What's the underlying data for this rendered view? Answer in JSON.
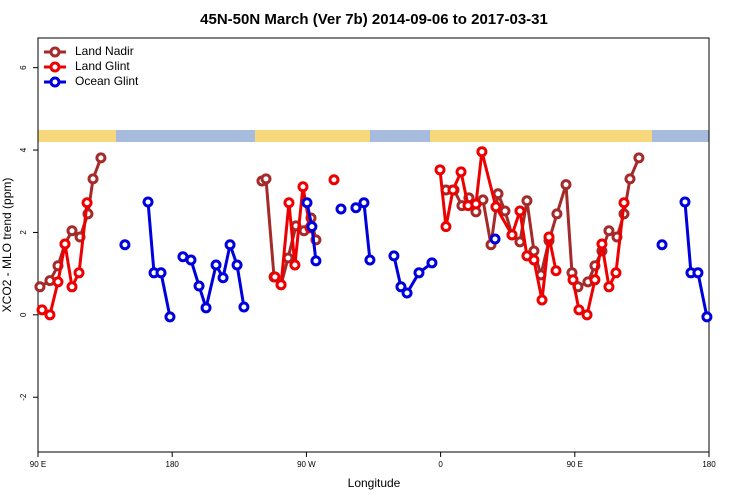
{
  "chart_data": {
    "type": "line",
    "title": "45N-50N March (Ver 7b)   2014-09-06 to 2017-03-31",
    "xlabel": "Longitude",
    "ylabel": "XCO2 - MLO trend (ppm)",
    "xlim": [
      90,
      540
    ],
    "ylim": [
      -3.33,
      6.72
    ],
    "xticks": [
      {
        "value": 90,
        "label": "90 E"
      },
      180,
      {
        "value": 270,
        "label": "90 W"
      },
      {
        "value": 360,
        "label": "0"
      },
      {
        "value": 450,
        "label": "90 E"
      },
      {
        "value": 540,
        "label": "180"
      }
    ],
    "yticks": [
      -2,
      0,
      2,
      4,
      6
    ],
    "legend": "top-left",
    "series": [
      {
        "name": "Land Nadir",
        "color": "#a52a2a",
        "x": [
          91.3,
          98.0,
          103.4,
          108.1,
          112.8,
          118.2,
          123.5,
          126.9,
          132.2,
          null,
          240.2,
          242.9,
          248.3,
          253.0,
          257.7,
          263.0,
          268.4,
          273.1,
          276.4,
          null,
          363.6,
          369.0,
          374.3,
          379.0,
          383.7,
          388.4,
          393.8,
          398.5,
          403.2,
          407.9,
          413.2,
          417.9,
          422.6,
          427.3,
          432.7,
          438.0,
          444.1,
          448.1,
          452.1,
          458.8,
          463.5,
          468.2,
          472.9,
          478.3,
          483.0,
          487.0,
          493.0
        ],
        "values": [
          0.68,
          0.83,
          1.19,
          1.72,
          2.04,
          1.89,
          2.45,
          3.3,
          3.81,
          null,
          3.25,
          3.3,
          0.92,
          0.73,
          1.38,
          2.16,
          2.04,
          2.35,
          1.82,
          null,
          3.03,
          3.03,
          2.65,
          2.84,
          2.5,
          2.79,
          1.7,
          2.94,
          2.52,
          1.94,
          1.77,
          2.77,
          1.55,
          0.97,
          1.8,
          2.45,
          3.16,
          1.02,
          0.68,
          0.8,
          1.19,
          1.55,
          2.04,
          1.89,
          2.45,
          3.3,
          3.81
        ]
      },
      {
        "name": "Land Glint",
        "color": "#ee0000",
        "x": [
          92.7,
          98.0,
          103.4,
          108.1,
          112.8,
          117.5,
          122.9,
          null,
          248.9,
          253.0,
          258.3,
          262.3,
          267.7,
          272.4,
          null,
          288.5,
          null,
          359.6,
          363.6,
          368.3,
          373.7,
          378.4,
          383.7,
          387.7,
          397.1,
          407.9,
          413.2,
          417.9,
          422.6,
          428.0,
          432.7,
          437.4,
          null,
          448.8,
          452.8,
          458.2,
          463.5,
          468.2,
          472.9,
          477.6,
          483.0
        ],
        "values": [
          0.12,
          0.0,
          0.8,
          1.72,
          0.68,
          1.02,
          2.72,
          null,
          0.92,
          0.73,
          2.72,
          1.21,
          3.11,
          2.11,
          null,
          3.28,
          null,
          3.52,
          2.14,
          3.03,
          3.47,
          2.65,
          2.69,
          3.96,
          2.62,
          1.94,
          2.52,
          1.43,
          1.33,
          0.36,
          1.89,
          1.07,
          null,
          0.85,
          0.12,
          0.0,
          0.85,
          1.72,
          0.68,
          1.02,
          2.72
        ]
      },
      {
        "name": "Ocean Glint",
        "color": "#0000dd",
        "x": [
          148.3,
          null,
          163.8,
          167.8,
          172.5,
          178.5,
          null,
          187.2,
          192.6,
          198.0,
          202.7,
          209.4,
          214.1,
          218.8,
          223.5,
          228.1,
          null,
          270.4,
          273.7,
          276.4,
          null,
          293.2,
          null,
          303.2,
          308.6,
          312.6,
          null,
          328.7,
          333.4,
          337.5,
          345.5,
          354.2,
          null,
          396.5,
          null,
          508.5,
          null,
          523.9,
          527.9,
          532.6,
          538.6
        ],
        "values": [
          1.7,
          null,
          2.74,
          1.02,
          1.02,
          -0.05,
          null,
          1.41,
          1.33,
          0.7,
          0.17,
          1.21,
          0.9,
          1.7,
          1.21,
          0.19,
          null,
          2.72,
          2.14,
          1.31,
          null,
          2.57,
          null,
          2.6,
          2.72,
          1.33,
          null,
          1.43,
          0.68,
          0.53,
          1.02,
          1.26,
          null,
          1.84,
          null,
          1.7,
          null,
          2.74,
          1.02,
          1.02,
          -0.05
        ]
      }
    ]
  }
}
